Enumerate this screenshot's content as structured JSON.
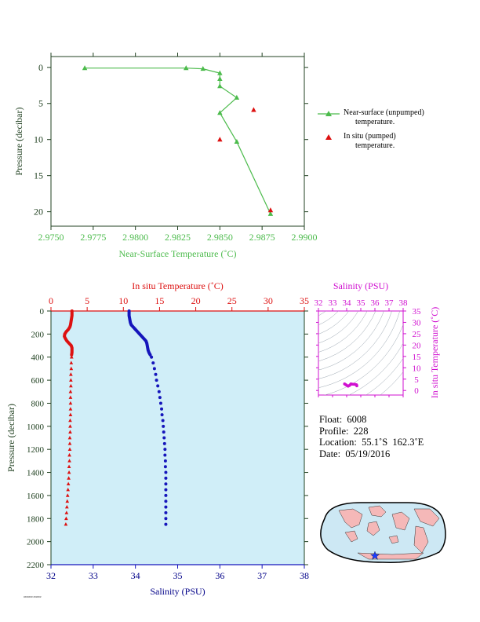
{
  "colors": {
    "green": "#4cbb4c",
    "red": "#dd1111",
    "blue": "#1515bb",
    "navy": "#000088",
    "magenta": "#d010d0",
    "axis_dark": "#204020",
    "plot_bg": "#d0eef8",
    "land": "#f5b8b8",
    "sea": "#cde8f4"
  },
  "top_chart_labels": {
    "xlabel": "Near-Surface Temperature (˚C)",
    "ylabel": "Pressure (decibar)",
    "legend_near": "Near-surface (unpumped)\n      temperature.",
    "legend_insitu": "In situ (pumped)\n      temperature."
  },
  "main_chart_labels": {
    "top_xlabel": "In situ Temperature (˚C)",
    "bottom_xlabel": "Salinity (PSU)",
    "ylabel": "Pressure (decibar)"
  },
  "inset_labels": {
    "title": "Salinity (PSU)",
    "ylabel": "In situ Temperature (˚C)"
  },
  "info": {
    "float": "Float:  6008",
    "profile": "Profile:  228",
    "location": "Location:  55.1˚S  162.3˚E",
    "date": "Date:  05/19/2016"
  },
  "footer_text": "####### ######",
  "chart_data": [
    {
      "type": "scatter",
      "xlabel": "Near-Surface Temperature (˚C)",
      "ylabel": "Pressure (decibar)",
      "xlim": [
        2.975,
        2.99
      ],
      "ylim": [
        22,
        -1.5
      ],
      "xticks": [
        "2.9750",
        "2.9775",
        "2.9800",
        "2.9825",
        "2.9850",
        "2.9875",
        "2.9900"
      ],
      "yticks": [
        "0",
        "5",
        "10",
        "15",
        "20"
      ],
      "series": [
        {
          "name": "Near-surface (unpumped) temperature.",
          "line": true,
          "points": [
            [
              2.977,
              0.1
            ],
            [
              2.983,
              0.1
            ],
            [
              2.984,
              0.2
            ],
            [
              2.985,
              0.8
            ],
            [
              2.985,
              1.6
            ],
            [
              2.985,
              2.6
            ],
            [
              2.986,
              4.2
            ],
            [
              2.985,
              6.3
            ],
            [
              2.986,
              10.3
            ],
            [
              2.988,
              20.3
            ]
          ]
        },
        {
          "name": "In situ (pumped) temperature.",
          "line": false,
          "points": [
            [
              2.987,
              5.9
            ],
            [
              2.985,
              10.0
            ],
            [
              2.988,
              19.8
            ]
          ]
        }
      ]
    },
    {
      "type": "scatter",
      "ylabel": "Pressure (decibar)",
      "ylim": [
        2200,
        0
      ],
      "yticks": [
        "0",
        "200",
        "400",
        "600",
        "800",
        "1000",
        "1200",
        "1400",
        "1600",
        "1800",
        "2000",
        "2200"
      ],
      "temperature_axis": {
        "label": "In situ Temperature (˚C)",
        "lim": [
          0,
          35
        ],
        "ticks": [
          "0",
          "5",
          "10",
          "15",
          "20",
          "25",
          "30",
          "35"
        ]
      },
      "salinity_axis": {
        "label": "Salinity (PSU)",
        "lim": [
          32,
          38
        ],
        "ticks": [
          "32",
          "33",
          "34",
          "35",
          "36",
          "37",
          "38"
        ]
      },
      "series": [
        {
          "name": "In situ Temperature (˚C)",
          "style": "solid-upper",
          "points": [
            [
              2.9,
              0
            ],
            [
              2.9,
              20
            ],
            [
              2.9,
              40
            ],
            [
              2.85,
              60
            ],
            [
              2.8,
              80
            ],
            [
              2.75,
              100
            ],
            [
              2.7,
              120
            ],
            [
              2.6,
              140
            ],
            [
              2.4,
              160
            ],
            [
              2.1,
              180
            ],
            [
              1.9,
              200
            ],
            [
              1.85,
              220
            ],
            [
              2.0,
              240
            ],
            [
              2.2,
              260
            ],
            [
              2.5,
              280
            ],
            [
              2.8,
              300
            ],
            [
              2.9,
              320
            ],
            [
              2.9,
              340
            ],
            [
              2.9,
              360
            ],
            [
              2.85,
              380
            ]
          ]
        },
        {
          "name": "In situ Temperature (˚C)",
          "style": "triangles",
          "points": [
            [
              2.85,
              400
            ],
            [
              2.8,
              450
            ],
            [
              2.8,
              500
            ],
            [
              2.75,
              550
            ],
            [
              2.75,
              600
            ],
            [
              2.75,
              650
            ],
            [
              2.7,
              700
            ],
            [
              2.7,
              750
            ],
            [
              2.7,
              800
            ],
            [
              2.7,
              850
            ],
            [
              2.7,
              900
            ],
            [
              2.65,
              950
            ],
            [
              2.65,
              1000
            ],
            [
              2.65,
              1050
            ],
            [
              2.6,
              1100
            ],
            [
              2.6,
              1150
            ],
            [
              2.6,
              1200
            ],
            [
              2.55,
              1250
            ],
            [
              2.55,
              1300
            ],
            [
              2.5,
              1350
            ],
            [
              2.5,
              1400
            ],
            [
              2.45,
              1450
            ],
            [
              2.4,
              1500
            ],
            [
              2.35,
              1550
            ],
            [
              2.3,
              1600
            ],
            [
              2.25,
              1650
            ],
            [
              2.2,
              1700
            ],
            [
              2.15,
              1750
            ],
            [
              2.1,
              1800
            ],
            [
              2.05,
              1850
            ]
          ]
        },
        {
          "name": "Salinity (PSU)",
          "style": "solid-upper",
          "points": [
            [
              33.85,
              0
            ],
            [
              33.85,
              20
            ],
            [
              33.85,
              40
            ],
            [
              33.86,
              60
            ],
            [
              33.87,
              80
            ],
            [
              33.88,
              100
            ],
            [
              33.9,
              120
            ],
            [
              33.95,
              140
            ],
            [
              34.0,
              160
            ],
            [
              34.05,
              180
            ],
            [
              34.1,
              200
            ],
            [
              34.15,
              220
            ],
            [
              34.2,
              240
            ],
            [
              34.25,
              260
            ],
            [
              34.27,
              280
            ],
            [
              34.28,
              300
            ],
            [
              34.29,
              320
            ],
            [
              34.3,
              340
            ],
            [
              34.32,
              360
            ],
            [
              34.35,
              380
            ]
          ]
        },
        {
          "name": "Salinity (PSU)",
          "style": "dots",
          "points": [
            [
              34.38,
              400
            ],
            [
              34.42,
              450
            ],
            [
              34.45,
              500
            ],
            [
              34.48,
              550
            ],
            [
              34.5,
              600
            ],
            [
              34.53,
              650
            ],
            [
              34.56,
              700
            ],
            [
              34.58,
              750
            ],
            [
              34.6,
              800
            ],
            [
              34.62,
              850
            ],
            [
              34.63,
              900
            ],
            [
              34.65,
              950
            ],
            [
              34.66,
              1000
            ],
            [
              34.67,
              1050
            ],
            [
              34.68,
              1100
            ],
            [
              34.69,
              1150
            ],
            [
              34.7,
              1200
            ],
            [
              34.7,
              1250
            ],
            [
              34.71,
              1300
            ],
            [
              34.71,
              1350
            ],
            [
              34.72,
              1400
            ],
            [
              34.72,
              1450
            ],
            [
              34.72,
              1500
            ],
            [
              34.72,
              1550
            ],
            [
              34.72,
              1600
            ],
            [
              34.72,
              1650
            ],
            [
              34.72,
              1700
            ],
            [
              34.72,
              1750
            ],
            [
              34.72,
              1800
            ],
            [
              34.72,
              1850
            ]
          ]
        }
      ]
    },
    {
      "type": "scatter",
      "title": "Salinity (PSU)",
      "ylabel": "In situ Temperature (˚C)",
      "xlim": [
        32,
        38
      ],
      "ylim": [
        -2,
        35
      ],
      "xticks": [
        "32",
        "33",
        "34",
        "35",
        "36",
        "37",
        "38"
      ],
      "yticks": [
        "0",
        "5",
        "10",
        "15",
        "20",
        "25",
        "30",
        "35"
      ],
      "series": [
        {
          "name": "T-S",
          "points": [
            [
              33.85,
              2.9
            ],
            [
              33.95,
              2.5
            ],
            [
              34.1,
              1.9
            ],
            [
              34.2,
              2.2
            ],
            [
              34.3,
              2.9
            ],
            [
              34.4,
              2.8
            ],
            [
              34.5,
              2.75
            ],
            [
              34.6,
              2.7
            ],
            [
              34.7,
              2.5
            ],
            [
              34.72,
              2.05
            ]
          ]
        }
      ]
    }
  ],
  "map": {
    "float_marker_lat": -55.1,
    "float_marker_lon": 162.3
  }
}
